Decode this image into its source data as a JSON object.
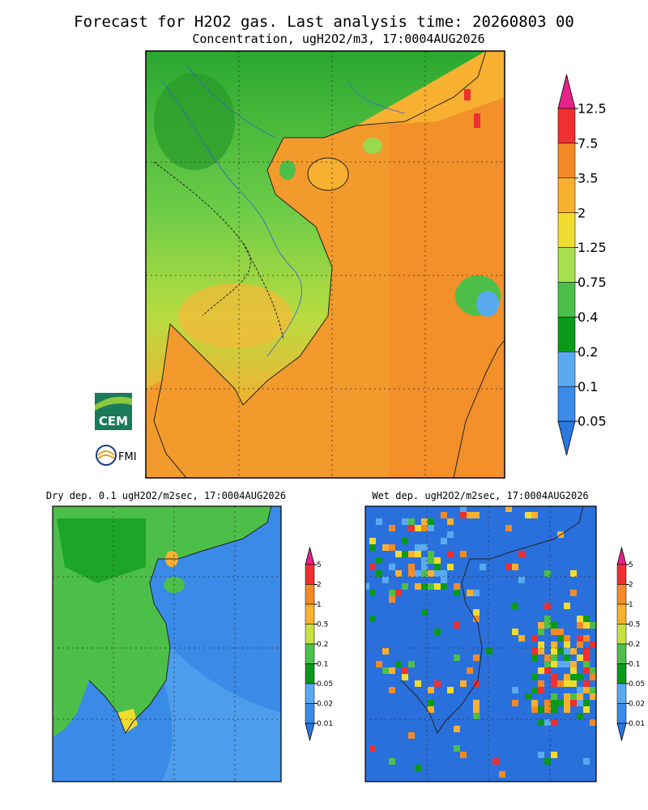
{
  "header": {
    "title": "Forecast for H2O2 gas. Last analysis time: 20260803 00",
    "subtitle": "Concentration, ugH2O2/m3, 17:0004AUG2026"
  },
  "main_map": {
    "colorbar": {
      "labels": [
        12.5,
        7.5,
        3.5,
        2,
        1.25,
        0.75,
        0.4,
        0.2,
        0.1,
        0.05
      ],
      "colors": [
        "#e8208a",
        "#ee3030",
        "#f38a25",
        "#f8b030",
        "#f0dc30",
        "#a8e050",
        "#4cbf48",
        "#0a9a1a",
        "#5aaaf0",
        "#3a8ae8",
        "#2a78e0"
      ]
    }
  },
  "dry_map": {
    "title": "Dry dep. 0.1 ugH2O2/m2sec, 17:0004AUG2026",
    "colorbar": {
      "labels": [
        5,
        2,
        1,
        0.5,
        0.2,
        0.1,
        0.05,
        0.02,
        0.01
      ],
      "colors": [
        "#e8208a",
        "#ee3030",
        "#f38a25",
        "#f8b030",
        "#c8e040",
        "#4cbf48",
        "#0a9a1a",
        "#5aaaf0",
        "#3a8ae8",
        "#2a78e0"
      ]
    }
  },
  "wet_map": {
    "title": "Wet dep. ugH2O2/m2sec, 17:0004AUG2026",
    "colorbar": {
      "labels": [
        5,
        2,
        1,
        0.5,
        0.2,
        0.1,
        0.05,
        0.02,
        0.01
      ],
      "colors": [
        "#e8208a",
        "#ee3030",
        "#f38a25",
        "#f8b030",
        "#c8e040",
        "#4cbf48",
        "#0a9a1a",
        "#5aaaf0",
        "#3a8ae8",
        "#2a78e0"
      ]
    }
  },
  "logos": {
    "cem": "CEM",
    "fmi": "FMI"
  }
}
